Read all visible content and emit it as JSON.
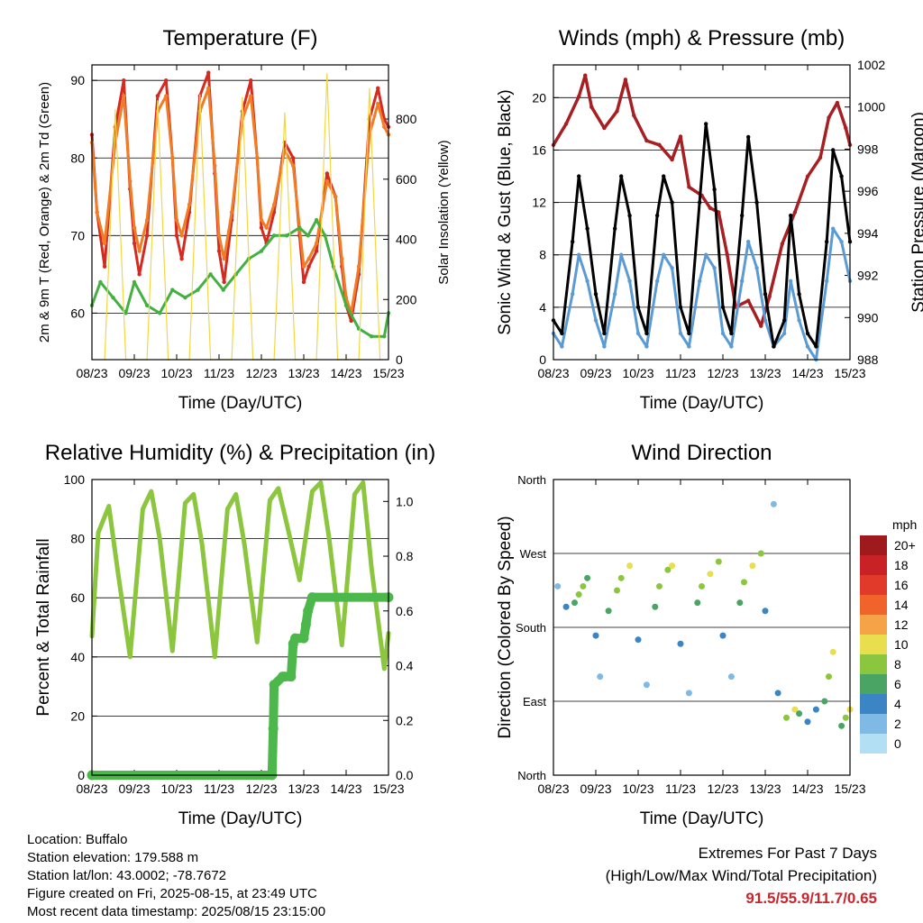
{
  "chart_data": [
    {
      "type": "line",
      "title": "Temperature (F)",
      "xlabel": "Time (Day/UTC)",
      "ylabel": "2m & 9m T (Red, Orange) & 2m Td (Green)",
      "y2label": "Solar Insolation (Yellow)",
      "x_ticks": [
        "08/23",
        "09/23",
        "10/23",
        "11/23",
        "12/23",
        "13/23",
        "14/23",
        "15/23"
      ],
      "ylim": [
        54,
        92
      ],
      "y_ticks": [
        60,
        70,
        80,
        90
      ],
      "y2lim": [
        0,
        980
      ],
      "y2_ticks": [
        0,
        200,
        400,
        600,
        800
      ],
      "grid": "horizontal",
      "series": [
        {
          "color": "#d42a20",
          "x": [
            0,
            0.12,
            0.3,
            0.55,
            0.75,
            0.9,
            1.0,
            1.12,
            1.3,
            1.55,
            1.75,
            1.9,
            2.0,
            2.12,
            2.3,
            2.55,
            2.75,
            2.9,
            3.0,
            3.12,
            3.3,
            3.55,
            3.75,
            3.9,
            4.0,
            4.12,
            4.3,
            4.55,
            4.75,
            4.9,
            5.0,
            5.12,
            5.3,
            5.55,
            5.75,
            5.9,
            6.0,
            6.12,
            6.3,
            6.55,
            6.75,
            6.9,
            7.0
          ],
          "values": [
            83,
            73,
            66,
            84,
            90,
            76,
            69,
            65,
            70,
            88,
            90,
            80,
            70,
            67,
            73,
            88,
            91,
            78,
            68,
            64,
            72,
            86,
            90,
            80,
            71,
            69,
            73,
            82,
            80,
            70,
            64,
            66,
            68,
            78,
            75,
            66,
            61,
            59,
            65,
            85,
            89,
            85,
            84
          ]
        },
        {
          "color": "#f07d26",
          "x": [
            0,
            0.12,
            0.3,
            0.55,
            0.75,
            0.9,
            1.0,
            1.12,
            1.3,
            1.55,
            1.75,
            1.9,
            2.0,
            2.12,
            2.3,
            2.55,
            2.75,
            2.9,
            3.0,
            3.12,
            3.3,
            3.55,
            3.75,
            3.9,
            4.0,
            4.12,
            4.3,
            4.55,
            4.75,
            4.9,
            5.0,
            5.12,
            5.3,
            5.55,
            5.75,
            5.9,
            6.0,
            6.12,
            6.3,
            6.55,
            6.75,
            6.9,
            7.0
          ],
          "values": [
            82,
            73,
            69,
            82,
            88,
            77,
            71,
            68,
            72,
            86,
            88,
            80,
            72,
            70,
            74,
            86,
            89,
            79,
            70,
            67,
            73,
            85,
            88,
            80,
            72,
            71,
            74,
            81,
            79,
            71,
            66,
            67,
            69,
            77,
            75,
            67,
            62,
            60,
            66,
            83,
            87,
            84,
            83
          ]
        },
        {
          "color": "#43b041",
          "x": [
            0,
            0.2,
            0.5,
            0.8,
            1.0,
            1.3,
            1.6,
            1.9,
            2.2,
            2.5,
            2.8,
            3.1,
            3.4,
            3.7,
            4.0,
            4.3,
            4.6,
            4.9,
            5.1,
            5.3,
            5.5,
            5.7,
            6.0,
            6.3,
            6.6,
            6.9,
            7.0
          ],
          "values": [
            61,
            64,
            62,
            60,
            64,
            61,
            60,
            63,
            62,
            63,
            65,
            63,
            65,
            67,
            68,
            70,
            70,
            71,
            70,
            72,
            70,
            66,
            61,
            58,
            57,
            57,
            60
          ]
        },
        {
          "color": "#f2d744",
          "x": [
            0.3,
            0.55,
            0.8,
            1.3,
            1.55,
            1.8,
            2.3,
            2.55,
            2.8,
            3.3,
            3.55,
            3.8,
            4.3,
            4.55,
            4.8,
            5.3,
            5.55,
            5.8,
            6.3,
            6.55,
            6.8
          ],
          "values2": [
            0,
            830,
            0,
            0,
            860,
            0,
            0,
            880,
            0,
            0,
            870,
            0,
            0,
            820,
            0,
            0,
            950,
            0,
            0,
            900,
            0
          ]
        }
      ]
    },
    {
      "type": "line",
      "title": "Winds (mph) & Pressure (mb)",
      "xlabel": "Time (Day/UTC)",
      "ylabel": "Sonic Wind & Gust (Blue, Black)",
      "y2label": "Station Pressure (Maroon)",
      "x_ticks": [
        "08/23",
        "09/23",
        "10/23",
        "11/23",
        "12/23",
        "13/23",
        "14/23",
        "15/23"
      ],
      "ylim": [
        0,
        22.5
      ],
      "y_ticks": [
        0,
        4,
        8,
        12,
        16,
        20
      ],
      "y2lim": [
        988,
        1002
      ],
      "y2_ticks": [
        988,
        990,
        992,
        994,
        996,
        998,
        1000,
        1002
      ],
      "grid": "horizontal",
      "series": [
        {
          "color": "#a71f22",
          "x": [
            0,
            0.3,
            0.6,
            0.75,
            0.9,
            1.2,
            1.5,
            1.7,
            1.9,
            2.2,
            2.5,
            2.8,
            3.0,
            3.2,
            3.5,
            3.7,
            3.9,
            4.1,
            4.3,
            4.6,
            4.9,
            5.1,
            5.4,
            5.7,
            6.0,
            6.3,
            6.5,
            6.7,
            6.9,
            7.0
          ],
          "values2": [
            998.2,
            999.2,
            1000.5,
            1001.5,
            1000.0,
            999.0,
            999.8,
            1001.3,
            999.6,
            998.4,
            998.2,
            997.5,
            998.6,
            996.2,
            995.8,
            995.2,
            995.0,
            993.0,
            990.5,
            990.8,
            989.6,
            991.0,
            993.5,
            995.0,
            996.7,
            997.6,
            999.5,
            1000.2,
            999.0,
            998.2
          ]
        },
        {
          "color": "#5b9bd5",
          "x": [
            0,
            0.2,
            0.45,
            0.6,
            0.8,
            1.0,
            1.2,
            1.45,
            1.6,
            1.8,
            2.0,
            2.2,
            2.45,
            2.6,
            2.8,
            3.0,
            3.2,
            3.45,
            3.6,
            3.8,
            4.0,
            4.2,
            4.45,
            4.6,
            4.8,
            5.0,
            5.2,
            5.45,
            5.6,
            5.8,
            6.0,
            6.2,
            6.45,
            6.6,
            6.8,
            7.0
          ],
          "values": [
            2,
            1,
            5,
            8,
            6,
            3,
            1,
            5,
            8,
            6,
            2,
            1,
            6,
            8,
            7,
            2,
            1,
            6,
            8,
            7,
            2,
            1,
            6,
            9,
            7,
            3,
            1,
            2,
            6,
            3,
            1,
            0,
            6,
            10,
            9,
            6
          ]
        },
        {
          "color": "#000000",
          "x": [
            0,
            0.2,
            0.45,
            0.6,
            0.8,
            1.0,
            1.2,
            1.45,
            1.6,
            1.8,
            2.0,
            2.2,
            2.45,
            2.6,
            2.8,
            3.0,
            3.2,
            3.45,
            3.6,
            3.8,
            4.0,
            4.2,
            4.45,
            4.6,
            4.8,
            5.0,
            5.2,
            5.45,
            5.6,
            5.8,
            6.0,
            6.2,
            6.45,
            6.6,
            6.8,
            7.0
          ],
          "values": [
            3,
            2,
            9,
            14,
            10,
            5,
            2,
            10,
            14,
            11,
            4,
            2,
            11,
            14,
            12,
            4,
            2,
            12,
            18,
            13,
            4,
            2,
            11,
            17,
            12,
            5,
            1,
            3,
            11,
            5,
            2,
            1,
            9,
            16,
            14,
            9
          ]
        }
      ]
    },
    {
      "type": "line",
      "title": "Relative Humidity (%) & Precipitation (in)",
      "xlabel": "Time (Day/UTC)",
      "ylabel": "Percent & Total Rainfall",
      "x_ticks": [
        "08/23",
        "09/23",
        "10/23",
        "11/23",
        "12/23",
        "13/23",
        "14/23",
        "15/23"
      ],
      "ylim": [
        0,
        100
      ],
      "y_ticks": [
        0,
        20,
        40,
        60,
        80,
        100
      ],
      "y2lim": [
        0,
        1.08
      ],
      "y2_ticks": [
        0.0,
        0.2,
        0.4,
        0.6,
        0.8,
        1.0
      ],
      "grid": "horizontal",
      "series": [
        {
          "color": "#8cc63f",
          "x": [
            0,
            0.15,
            0.4,
            0.6,
            0.9,
            1.2,
            1.4,
            1.6,
            1.9,
            2.2,
            2.4,
            2.6,
            2.9,
            3.2,
            3.4,
            3.6,
            3.9,
            4.2,
            4.4,
            4.6,
            4.9,
            5.2,
            5.4,
            5.6,
            5.9,
            6.2,
            6.4,
            6.6,
            6.9,
            7.0
          ],
          "values": [
            47,
            82,
            91,
            70,
            40,
            90,
            96,
            80,
            42,
            92,
            95,
            78,
            40,
            90,
            95,
            78,
            45,
            93,
            97,
            85,
            66,
            96,
            99,
            80,
            44,
            95,
            99,
            70,
            36,
            48
          ]
        },
        {
          "color": "#4cb84b",
          "x": [
            0,
            4.25,
            4.28,
            4.3,
            4.5,
            4.55,
            4.7,
            4.75,
            4.8,
            5.0,
            5.05,
            5.1,
            5.2,
            7.0
          ],
          "values2": [
            0,
            0,
            0.17,
            0.33,
            0.36,
            0.36,
            0.36,
            0.48,
            0.5,
            0.5,
            0.55,
            0.6,
            0.65,
            0.65
          ]
        }
      ]
    },
    {
      "type": "scatter",
      "title": "Wind Direction",
      "xlabel": "Time (Day/UTC)",
      "ylabel": "Direction (Colored By Speed)",
      "x_ticks": [
        "08/23",
        "09/23",
        "10/23",
        "11/23",
        "12/23",
        "13/23",
        "14/23",
        "15/23"
      ],
      "y_ticks": [
        "North",
        "East",
        "South",
        "West",
        "North"
      ],
      "ylim": [
        0,
        360
      ],
      "grid": "horizontal",
      "colorbar": {
        "label": "mph",
        "ticks": [
          "20+",
          "18",
          "16",
          "14",
          "12",
          "10",
          "8",
          "6",
          "4",
          "2",
          "0"
        ],
        "colors": [
          "#9e1a1c",
          "#c82126",
          "#e23a2a",
          "#f0642c",
          "#f6a246",
          "#e8de4e",
          "#8cc63f",
          "#4aa565",
          "#3b85c4",
          "#7fb9e6",
          "#b3dff5"
        ]
      },
      "x": [
        0.1,
        0.3,
        0.5,
        0.6,
        0.7,
        0.8,
        1.0,
        1.1,
        1.3,
        1.5,
        1.6,
        1.8,
        2.0,
        2.2,
        2.4,
        2.5,
        2.7,
        2.8,
        3.0,
        3.2,
        3.4,
        3.5,
        3.7,
        3.9,
        4.0,
        4.2,
        4.4,
        4.5,
        4.7,
        4.9,
        5.0,
        5.2,
        5.3,
        5.5,
        5.7,
        5.8,
        6.0,
        6.2,
        6.4,
        6.5,
        6.6,
        6.8,
        6.9,
        7.0
      ],
      "dir": [
        230,
        205,
        210,
        220,
        230,
        240,
        170,
        120,
        200,
        225,
        240,
        255,
        165,
        110,
        205,
        230,
        250,
        255,
        160,
        100,
        210,
        230,
        245,
        260,
        170,
        120,
        210,
        235,
        255,
        270,
        200,
        330,
        100,
        70,
        80,
        75,
        65,
        80,
        90,
        120,
        150,
        60,
        70,
        80
      ],
      "speed": [
        2,
        4,
        5,
        7,
        8,
        6,
        3,
        1,
        5,
        7,
        8,
        9,
        3,
        1,
        5,
        7,
        8,
        9,
        3,
        1,
        5,
        7,
        9,
        8,
        3,
        2,
        5,
        8,
        10,
        8,
        4,
        1,
        4,
        7,
        10,
        5,
        4,
        3,
        6,
        8,
        9,
        5,
        8,
        10
      ]
    }
  ],
  "info": {
    "location": "Location: Buffalo",
    "elevation": "Station elevation: 179.588 m",
    "latlon": "Station lat/lon: 43.0002; -78.7672",
    "created": "Figure created on Fri, 2025-08-15, at 23:49 UTC",
    "timestamp": "Most recent data timestamp: 2025/08/15 23:15:00"
  },
  "extremes": {
    "title": "Extremes For Past 7 Days",
    "subtitle": "(High/Low/Max Wind/Total Precipitation)",
    "values": "91.5/55.9/11.7/0.65"
  }
}
